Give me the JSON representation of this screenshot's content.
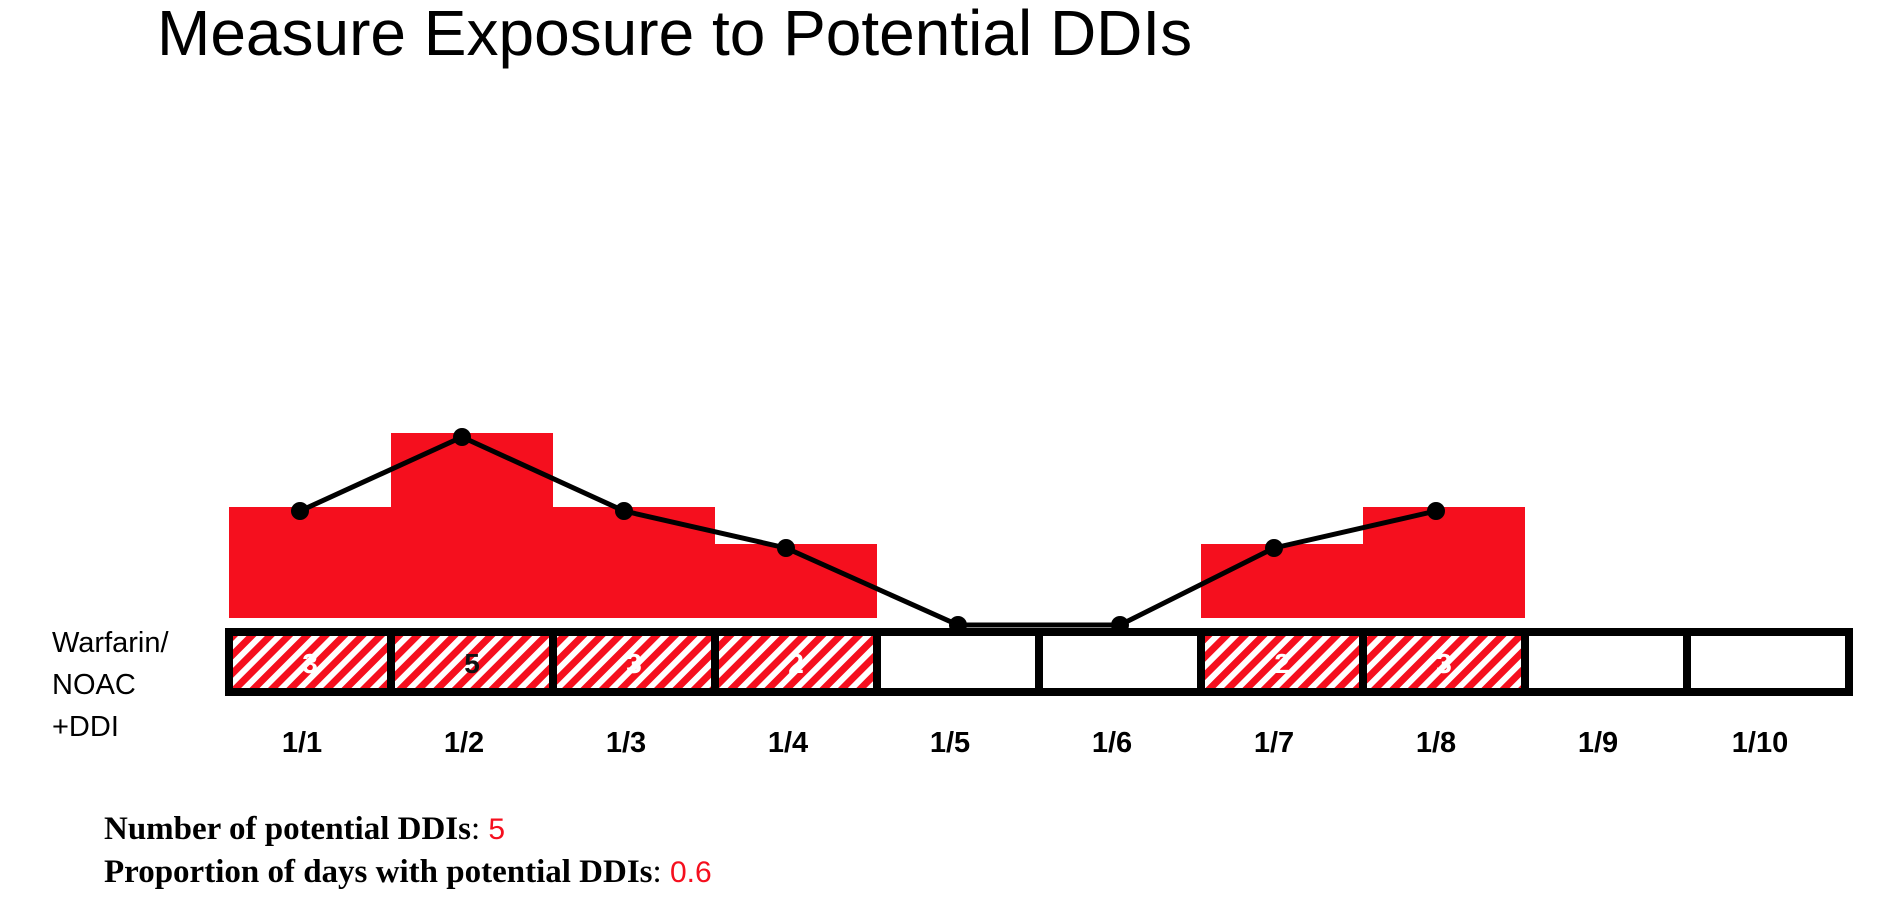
{
  "title": "Measure Exposure to Potential DDIs",
  "row_label": {
    "line1": "Warfarin/",
    "line2": "NOAC",
    "line3": "+DDI"
  },
  "colors": {
    "accent": "#f50f1e",
    "line": "#000000",
    "cell_border": "#000000"
  },
  "chart_data": {
    "type": "bar",
    "categories": [
      "1/1",
      "1/2",
      "1/3",
      "1/4",
      "1/5",
      "1/6",
      "1/7",
      "1/8",
      "1/9",
      "1/10"
    ],
    "values": [
      3,
      5,
      3,
      2,
      0,
      0,
      2,
      3,
      0,
      0
    ],
    "line_points": [
      3,
      5,
      3,
      2,
      0,
      0,
      2,
      3,
      null,
      null
    ],
    "ddi_days": [
      true,
      true,
      true,
      true,
      false,
      false,
      true,
      true,
      false,
      false
    ],
    "cell_numbers": [
      "3",
      "5",
      "3",
      "2",
      "",
      "",
      "2",
      "3",
      "",
      ""
    ]
  },
  "stats": {
    "count_label": "Number of potential DDIs",
    "count_value": "5",
    "proportion_label": "Proportion of days with potential DDIs",
    "proportion_value": "0.6"
  }
}
